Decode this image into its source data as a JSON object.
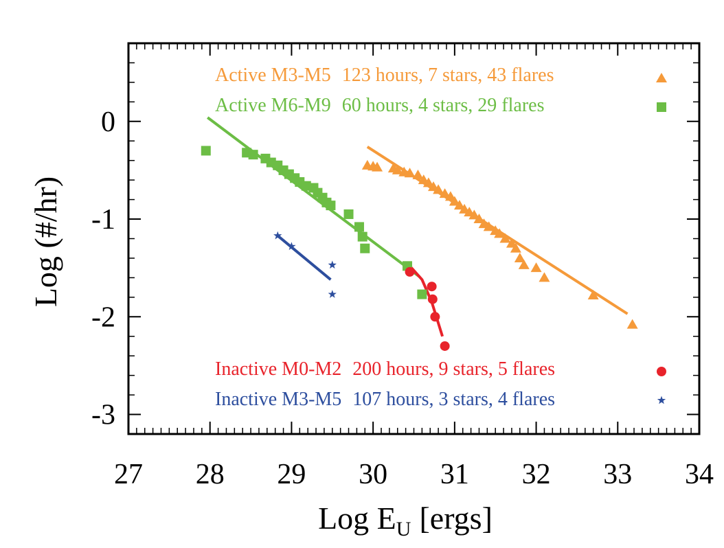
{
  "chart_data": {
    "type": "scatter",
    "title": "",
    "xlabel": "Log E",
    "xlabel_subscript": "U",
    "xlabel_suffix": "[ergs]",
    "ylabel": "Log (#/hr)",
    "xlim": [
      27,
      34
    ],
    "ylim": [
      -3.2,
      0.8
    ],
    "xticks": [
      27,
      28,
      29,
      30,
      31,
      32,
      33,
      34
    ],
    "yticks": [
      0,
      -1,
      -2,
      -3
    ],
    "ytick_labels": [
      "0",
      "-1",
      "-2",
      "-3"
    ],
    "grid": false,
    "legend_placement": "inside",
    "series": [
      {
        "name": "Active M3-M5",
        "stats": "123 hours, 7 stars, 43 flares",
        "marker": "triangle",
        "color": "#f59a3a",
        "points": [
          [
            29.93,
            -0.45
          ],
          [
            30.0,
            -0.46
          ],
          [
            30.05,
            -0.47
          ],
          [
            30.25,
            -0.48
          ],
          [
            30.3,
            -0.5
          ],
          [
            30.38,
            -0.52
          ],
          [
            30.45,
            -0.53
          ],
          [
            30.55,
            -0.55
          ],
          [
            30.62,
            -0.6
          ],
          [
            30.68,
            -0.63
          ],
          [
            30.74,
            -0.67
          ],
          [
            30.8,
            -0.7
          ],
          [
            30.88,
            -0.74
          ],
          [
            30.95,
            -0.77
          ],
          [
            31.0,
            -0.82
          ],
          [
            31.06,
            -0.86
          ],
          [
            31.12,
            -0.9
          ],
          [
            31.18,
            -0.93
          ],
          [
            31.24,
            -0.96
          ],
          [
            31.3,
            -1.0
          ],
          [
            31.36,
            -1.05
          ],
          [
            31.42,
            -1.08
          ],
          [
            31.5,
            -1.12
          ],
          [
            31.55,
            -1.15
          ],
          [
            31.62,
            -1.2
          ],
          [
            31.7,
            -1.25
          ],
          [
            31.75,
            -1.3
          ],
          [
            31.8,
            -1.4
          ],
          [
            31.85,
            -1.47
          ],
          [
            32.0,
            -1.5
          ],
          [
            32.1,
            -1.6
          ],
          [
            32.7,
            -1.78
          ],
          [
            33.18,
            -2.08
          ]
        ],
        "fit": [
          [
            29.93,
            -0.26
          ],
          [
            33.12,
            -1.97
          ]
        ]
      },
      {
        "name": "Active M6-M9",
        "stats": "60 hours, 4 stars, 29 flares",
        "marker": "square",
        "color": "#6cbd45",
        "points": [
          [
            27.95,
            -0.3
          ],
          [
            28.45,
            -0.32
          ],
          [
            28.53,
            -0.34
          ],
          [
            28.68,
            -0.38
          ],
          [
            28.75,
            -0.42
          ],
          [
            28.83,
            -0.45
          ],
          [
            28.9,
            -0.5
          ],
          [
            28.97,
            -0.54
          ],
          [
            29.04,
            -0.58
          ],
          [
            29.1,
            -0.62
          ],
          [
            29.18,
            -0.66
          ],
          [
            29.27,
            -0.68
          ],
          [
            29.32,
            -0.73
          ],
          [
            29.38,
            -0.78
          ],
          [
            29.43,
            -0.83
          ],
          [
            29.48,
            -0.86
          ],
          [
            29.7,
            -0.95
          ],
          [
            29.83,
            -1.08
          ],
          [
            29.87,
            -1.18
          ],
          [
            29.9,
            -1.3
          ],
          [
            30.42,
            -1.48
          ],
          [
            30.6,
            -1.77
          ]
        ],
        "fit": [
          [
            27.97,
            0.04
          ],
          [
            30.57,
            -1.59
          ]
        ]
      },
      {
        "name": "Inactive M0-M2",
        "stats": "200 hours, 9 stars, 5 flares",
        "marker": "circle",
        "color": "#e8232b",
        "points": [
          [
            30.45,
            -1.54
          ],
          [
            30.72,
            -1.69
          ],
          [
            30.73,
            -1.82
          ],
          [
            30.76,
            -2.0
          ],
          [
            30.88,
            -2.3
          ]
        ],
        "fit": [
          [
            30.45,
            -1.48
          ],
          [
            30.6,
            -1.62
          ],
          [
            30.72,
            -1.85
          ],
          [
            30.85,
            -2.2
          ]
        ]
      },
      {
        "name": "Inactive M3-M5",
        "stats": "107 hours, 3 stars, 4 flares",
        "marker": "star",
        "color": "#2d4e9e",
        "points": [
          [
            28.83,
            -1.17
          ],
          [
            29.0,
            -1.28
          ],
          [
            29.5,
            -1.47
          ],
          [
            29.5,
            -1.77
          ]
        ],
        "fit": [
          [
            28.83,
            -1.17
          ],
          [
            29.48,
            -1.62
          ]
        ]
      }
    ]
  }
}
